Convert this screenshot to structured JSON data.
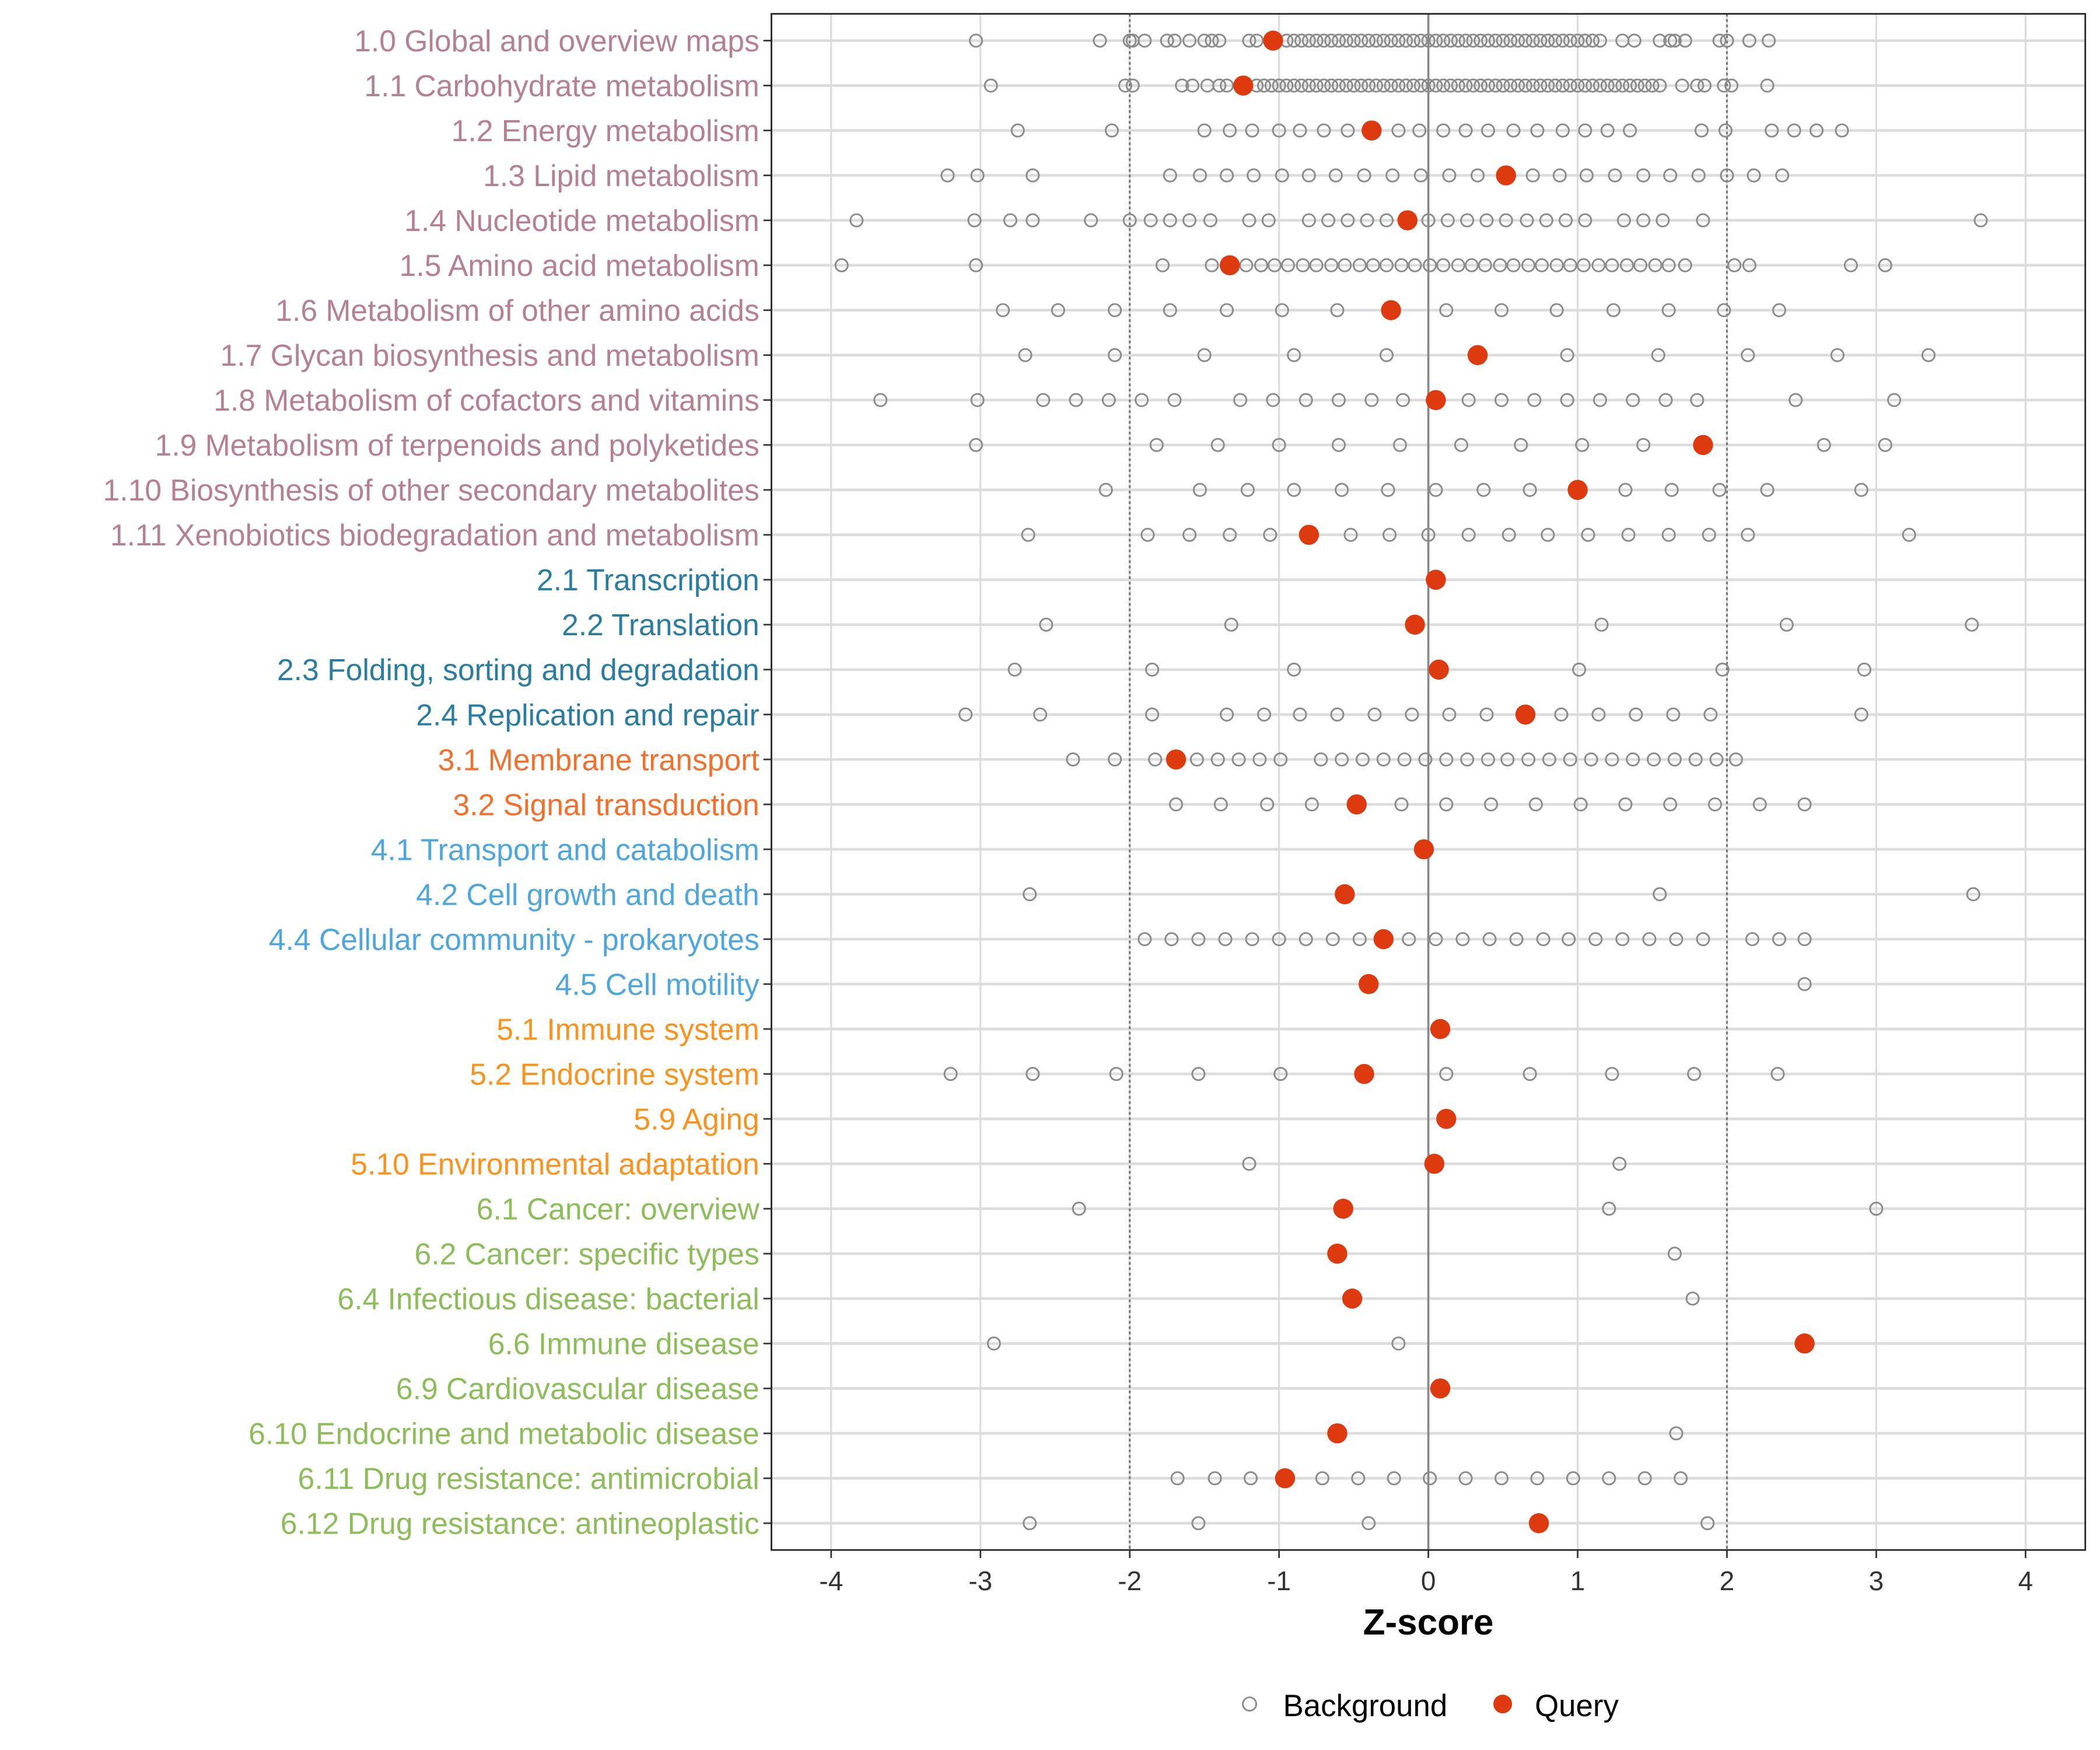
{
  "chart_data": {
    "type": "scatter",
    "title": "",
    "xlabel": "Z-score",
    "ylabel": "",
    "xlim": [
      -4.4,
      4.4
    ],
    "xticks": [
      "-4",
      "-3",
      "-2",
      "-1",
      "0",
      "1",
      "2",
      "3",
      "4"
    ],
    "xtick_values": [
      -4,
      -3,
      -2,
      -1,
      0,
      1,
      2,
      3,
      4
    ],
    "reference_lines": [
      -2,
      0,
      2
    ],
    "grid": true,
    "legend": {
      "position": "bottom",
      "entries": [
        "Background",
        "Query"
      ]
    },
    "colors": {
      "query": "#de3a10",
      "background": "#8c8c8c",
      "group1": "#b5808f",
      "group2": "#2a7ca0",
      "group3": "#f0702c",
      "group4": "#4ea6dc",
      "group5": "#f7931e",
      "group6": "#8cbd5a"
    },
    "categories": [
      {
        "label": "1.0 Global and overview maps",
        "group": "group1",
        "query": -1.04,
        "background": [
          -3.03,
          -2.2,
          -2.0,
          -1.98,
          -1.9,
          -1.75,
          -1.7,
          -1.6,
          -1.5,
          -1.45,
          -1.4,
          -1.2,
          -1.15,
          -0.95,
          -0.9,
          -0.85,
          -0.8,
          -0.75,
          -0.7,
          -0.65,
          -0.6,
          -0.55,
          -0.5,
          -0.45,
          -0.4,
          -0.35,
          -0.3,
          -0.25,
          -0.2,
          -0.15,
          -0.1,
          -0.05,
          0.0,
          0.05,
          0.1,
          0.15,
          0.2,
          0.25,
          0.3,
          0.35,
          0.4,
          0.45,
          0.5,
          0.55,
          0.6,
          0.65,
          0.7,
          0.75,
          0.8,
          0.85,
          0.9,
          0.95,
          1.0,
          1.05,
          1.1,
          1.15,
          1.3,
          1.38,
          1.55,
          1.62,
          1.65,
          1.72,
          1.95,
          2.0,
          2.15,
          2.28
        ]
      },
      {
        "label": "1.1 Carbohydrate metabolism",
        "group": "group1",
        "query": -1.24,
        "background": [
          -2.93,
          -2.03,
          -1.98,
          -1.65,
          -1.58,
          -1.48,
          -1.4,
          -1.35,
          -1.15,
          -1.1,
          -1.05,
          -1.0,
          -0.95,
          -0.9,
          -0.85,
          -0.8,
          -0.75,
          -0.7,
          -0.65,
          -0.6,
          -0.55,
          -0.5,
          -0.45,
          -0.4,
          -0.35,
          -0.3,
          -0.25,
          -0.2,
          -0.15,
          -0.1,
          -0.05,
          0.0,
          0.05,
          0.1,
          0.15,
          0.2,
          0.25,
          0.3,
          0.35,
          0.4,
          0.45,
          0.5,
          0.55,
          0.6,
          0.65,
          0.7,
          0.75,
          0.8,
          0.85,
          0.9,
          0.95,
          1.0,
          1.05,
          1.1,
          1.15,
          1.2,
          1.25,
          1.3,
          1.35,
          1.4,
          1.45,
          1.5,
          1.55,
          1.7,
          1.8,
          1.85,
          1.98,
          2.03,
          2.27
        ]
      },
      {
        "label": "1.2 Energy metabolism",
        "group": "group1",
        "query": -0.38,
        "background": [
          -2.75,
          -2.12,
          -1.5,
          -1.33,
          -1.18,
          -1.0,
          -0.86,
          -0.7,
          -0.54,
          -0.2,
          -0.06,
          0.1,
          0.25,
          0.4,
          0.57,
          0.73,
          0.9,
          1.05,
          1.2,
          1.35,
          1.83,
          1.99,
          2.3,
          2.45,
          2.6,
          2.77
        ]
      },
      {
        "label": "1.3 Lipid metabolism",
        "group": "group1",
        "query": 0.52,
        "background": [
          -3.22,
          -3.02,
          -2.65,
          -1.73,
          -1.53,
          -1.35,
          -1.17,
          -0.98,
          -0.8,
          -0.62,
          -0.43,
          -0.24,
          -0.05,
          0.14,
          0.33,
          0.7,
          0.88,
          1.06,
          1.25,
          1.44,
          1.62,
          1.81,
          2.0,
          2.18,
          2.37
        ]
      },
      {
        "label": "1.4 Nucleotide metabolism",
        "group": "group1",
        "query": -0.14,
        "background": [
          -3.83,
          -3.04,
          -2.8,
          -2.65,
          -2.26,
          -2.0,
          -1.86,
          -1.73,
          -1.6,
          -1.46,
          -1.2,
          -1.07,
          -0.8,
          -0.67,
          -0.54,
          -0.41,
          -0.28,
          0.0,
          0.13,
          0.26,
          0.39,
          0.52,
          0.66,
          0.79,
          0.92,
          1.05,
          1.31,
          1.44,
          1.57,
          1.84,
          3.7
        ]
      },
      {
        "label": "1.5 Amino acid metabolism",
        "group": "group1",
        "query": -1.33,
        "background": [
          -3.93,
          -3.03,
          -1.78,
          -1.45,
          -1.22,
          -1.12,
          -1.03,
          -0.94,
          -0.84,
          -0.75,
          -0.65,
          -0.56,
          -0.46,
          -0.37,
          -0.28,
          -0.18,
          -0.09,
          0.01,
          0.1,
          0.2,
          0.29,
          0.38,
          0.48,
          0.57,
          0.67,
          0.76,
          0.86,
          0.95,
          1.04,
          1.14,
          1.23,
          1.33,
          1.42,
          1.52,
          1.61,
          1.72,
          2.05,
          2.15,
          2.83,
          3.06
        ]
      },
      {
        "label": "1.6 Metabolism of other amino acids",
        "group": "group1",
        "query": -0.25,
        "background": [
          -2.85,
          -2.48,
          -2.1,
          -1.73,
          -1.35,
          -0.98,
          -0.61,
          0.12,
          0.49,
          0.86,
          1.24,
          1.61,
          1.98,
          2.35
        ]
      },
      {
        "label": "1.7 Glycan biosynthesis and metabolism",
        "group": "group1",
        "query": 0.33,
        "background": [
          -2.7,
          -2.1,
          -1.5,
          -0.9,
          -0.28,
          0.93,
          1.54,
          2.14,
          2.74,
          3.35
        ]
      },
      {
        "label": "1.8 Metabolism of cofactors and vitamins",
        "group": "group1",
        "query": 0.05,
        "background": [
          -3.67,
          -3.02,
          -2.58,
          -2.36,
          -2.14,
          -1.92,
          -1.7,
          -1.26,
          -1.04,
          -0.82,
          -0.6,
          -0.38,
          -0.17,
          0.27,
          0.49,
          0.71,
          0.93,
          1.15,
          1.37,
          1.59,
          1.8,
          2.46,
          3.12
        ]
      },
      {
        "label": "1.9 Metabolism of terpenoids and polyketides",
        "group": "group1",
        "query": 1.84,
        "background": [
          -3.03,
          -1.82,
          -1.41,
          -1.0,
          -0.6,
          -0.19,
          0.22,
          0.62,
          1.03,
          1.44,
          2.65,
          3.06
        ]
      },
      {
        "label": "1.10 Biosynthesis of other secondary metabolites",
        "group": "group1",
        "query": 1.0,
        "background": [
          -2.16,
          -1.53,
          -1.21,
          -0.9,
          -0.58,
          -0.27,
          0.05,
          0.37,
          0.68,
          1.32,
          1.63,
          1.95,
          2.27,
          2.9
        ]
      },
      {
        "label": "1.11 Xenobiotics biodegradation and metabolism",
        "group": "group1",
        "query": -0.8,
        "background": [
          -2.68,
          -1.88,
          -1.6,
          -1.33,
          -1.06,
          -0.52,
          -0.26,
          0.0,
          0.27,
          0.54,
          0.8,
          1.07,
          1.34,
          1.61,
          1.88,
          2.14,
          3.22
        ]
      },
      {
        "label": "2.1 Transcription",
        "group": "group2",
        "query": 0.05,
        "background": []
      },
      {
        "label": "2.2 Translation",
        "group": "group2",
        "query": -0.09,
        "background": [
          -2.56,
          -1.32,
          1.16,
          2.4,
          3.64
        ]
      },
      {
        "label": "2.3 Folding, sorting and degradation",
        "group": "group2",
        "query": 0.07,
        "background": [
          -2.77,
          -1.85,
          -0.9,
          1.01,
          1.97,
          2.92
        ]
      },
      {
        "label": "2.4 Replication and repair",
        "group": "group2",
        "query": 0.65,
        "background": [
          -3.1,
          -2.6,
          -1.85,
          -1.35,
          -1.1,
          -0.86,
          -0.61,
          -0.36,
          -0.11,
          0.14,
          0.39,
          0.89,
          1.14,
          1.39,
          1.64,
          1.89,
          2.9
        ]
      },
      {
        "label": "3.1 Membrane transport",
        "group": "group3",
        "query": -1.69,
        "background": [
          -2.38,
          -2.1,
          -1.83,
          -1.55,
          -1.41,
          -1.27,
          -1.13,
          -0.99,
          -0.72,
          -0.58,
          -0.44,
          -0.3,
          -0.16,
          -0.02,
          0.12,
          0.26,
          0.4,
          0.53,
          0.67,
          0.81,
          0.95,
          1.09,
          1.23,
          1.37,
          1.51,
          1.65,
          1.79,
          1.93,
          2.06
        ]
      },
      {
        "label": "3.2 Signal transduction",
        "group": "group3",
        "query": -0.48,
        "background": [
          -1.69,
          -1.39,
          -1.08,
          -0.78,
          -0.18,
          0.12,
          0.42,
          0.72,
          1.02,
          1.32,
          1.62,
          1.92,
          2.22,
          2.52
        ]
      },
      {
        "label": "4.1 Transport and catabolism",
        "group": "group4",
        "query": -0.03,
        "background": []
      },
      {
        "label": "4.2 Cell growth and death",
        "group": "group4",
        "query": -0.56,
        "background": [
          -2.67,
          1.55,
          3.65
        ]
      },
      {
        "label": "4.4 Cellular community - prokaryotes",
        "group": "group4",
        "query": -0.3,
        "background": [
          -1.9,
          -1.72,
          -1.54,
          -1.36,
          -1.18,
          -1.0,
          -0.82,
          -0.64,
          -0.46,
          -0.13,
          0.05,
          0.23,
          0.41,
          0.59,
          0.77,
          0.94,
          1.12,
          1.3,
          1.48,
          1.66,
          1.84,
          2.17,
          2.35,
          2.52
        ]
      },
      {
        "label": "4.5 Cell motility",
        "group": "group4",
        "query": -0.4,
        "background": [
          2.52
        ]
      },
      {
        "label": "5.1 Immune system",
        "group": "group5",
        "query": 0.08,
        "background": []
      },
      {
        "label": "5.2 Endocrine system",
        "group": "group5",
        "query": -0.43,
        "background": [
          -3.2,
          -2.65,
          -2.09,
          -1.54,
          -0.99,
          0.12,
          0.68,
          1.23,
          1.78,
          2.34
        ]
      },
      {
        "label": "5.9 Aging",
        "group": "group5",
        "query": 0.12,
        "background": []
      },
      {
        "label": "5.10 Environmental adaptation",
        "group": "group5",
        "query": 0.04,
        "background": [
          -1.2,
          1.28
        ]
      },
      {
        "label": "6.1 Cancer: overview",
        "group": "group6",
        "query": -0.57,
        "background": [
          -2.34,
          1.21,
          3.0
        ]
      },
      {
        "label": "6.2 Cancer: specific types",
        "group": "group6",
        "query": -0.61,
        "background": [
          1.65
        ]
      },
      {
        "label": "6.4 Infectious disease: bacterial",
        "group": "group6",
        "query": -0.51,
        "background": [
          1.77
        ]
      },
      {
        "label": "6.6 Immune disease",
        "group": "group6",
        "query": 2.52,
        "background": [
          -2.91,
          -0.2
        ]
      },
      {
        "label": "6.9 Cardiovascular disease",
        "group": "group6",
        "query": 0.08,
        "background": []
      },
      {
        "label": "6.10 Endocrine and metabolic disease",
        "group": "group6",
        "query": -0.61,
        "background": [
          1.66
        ]
      },
      {
        "label": "6.11 Drug resistance: antimicrobial",
        "group": "group6",
        "query": -0.96,
        "background": [
          -1.68,
          -1.43,
          -1.19,
          -0.71,
          -0.47,
          -0.23,
          0.01,
          0.25,
          0.49,
          0.73,
          0.97,
          1.21,
          1.45,
          1.69
        ]
      },
      {
        "label": "6.12 Drug resistance: antineoplastic",
        "group": "group6",
        "query": 0.74,
        "background": [
          -2.67,
          -1.54,
          -0.4,
          1.87
        ]
      }
    ]
  }
}
